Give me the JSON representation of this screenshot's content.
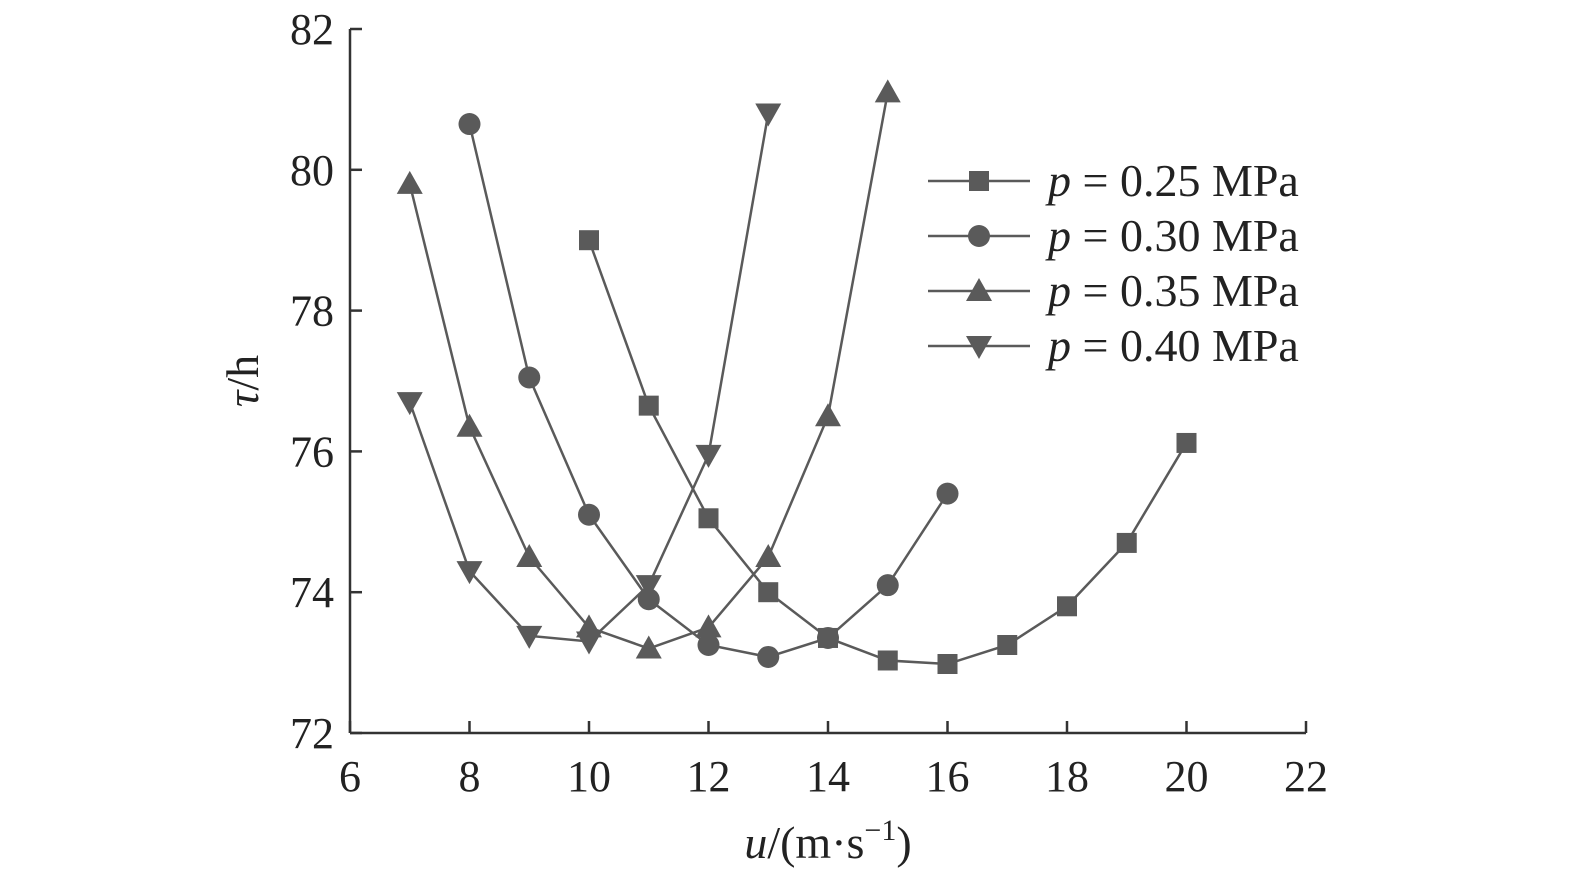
{
  "chart_data": {
    "type": "line",
    "xlabel": {
      "var": "u",
      "rest": "/(m·s",
      "sup": "−1",
      "close": ")"
    },
    "ylabel": {
      "var": "τ",
      "rest": "/h"
    },
    "xlim": [
      6,
      22
    ],
    "ylim": [
      72,
      82
    ],
    "xticks": [
      6,
      8,
      10,
      12,
      14,
      16,
      18,
      20,
      22
    ],
    "yticks": [
      72,
      74,
      76,
      78,
      80,
      82
    ],
    "grid": false,
    "legend_position": "top-right",
    "color": "#5a5a5a",
    "series": [
      {
        "name": "p = 0.25 MPa",
        "legend": {
          "var": "p",
          "rest": " = 0.25 MPa"
        },
        "marker": "square",
        "x": [
          10,
          11,
          12,
          13,
          14,
          15,
          16,
          17,
          18,
          19,
          20
        ],
        "y": [
          79.0,
          76.65,
          75.05,
          74.0,
          73.35,
          73.03,
          72.98,
          73.25,
          73.8,
          74.7,
          76.12
        ]
      },
      {
        "name": "p = 0.30 MPa",
        "legend": {
          "var": "p",
          "rest": " = 0.30 MPa"
        },
        "marker": "circle",
        "x": [
          8,
          9,
          10,
          11,
          12,
          13,
          14,
          15,
          16
        ],
        "y": [
          80.65,
          77.05,
          75.1,
          73.9,
          73.25,
          73.08,
          73.35,
          74.1,
          75.4
        ]
      },
      {
        "name": "p = 0.35 MPa",
        "legend": {
          "var": "p",
          "rest": " = 0.35 MPa"
        },
        "marker": "triangle-up",
        "x": [
          7,
          8,
          9,
          10,
          11,
          12,
          13,
          14,
          15
        ],
        "y": [
          79.8,
          76.35,
          74.5,
          73.5,
          73.2,
          73.5,
          74.5,
          76.5,
          81.1
        ]
      },
      {
        "name": "p = 0.40 MPa",
        "legend": {
          "var": "p",
          "rest": " = 0.40 MPa"
        },
        "marker": "triangle-down",
        "x": [
          7,
          8,
          9,
          10,
          11,
          12,
          13
        ],
        "y": [
          76.7,
          74.3,
          73.38,
          73.3,
          74.1,
          75.95,
          80.8
        ]
      }
    ]
  }
}
